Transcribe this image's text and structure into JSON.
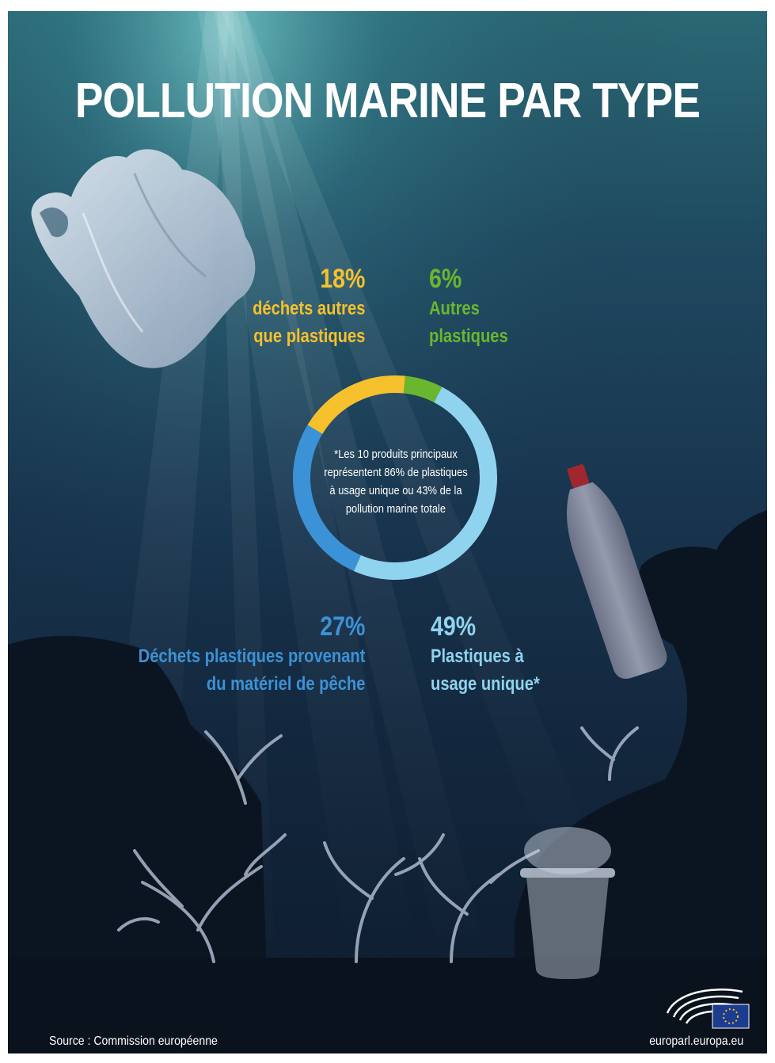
{
  "title": "POLLUTION MARINE PAR TYPE",
  "chart_data": {
    "type": "pie",
    "title": "POLLUTION MARINE PAR TYPE",
    "slices": [
      {
        "pct_label": "18%",
        "value": 18,
        "label_line1": "déchets autres",
        "label_line2": "que plastiques",
        "color": "#f6c12c"
      },
      {
        "pct_label": "6%",
        "value": 6,
        "label_line1": "Autres",
        "label_line2": "plastiques",
        "color": "#6ab72f"
      },
      {
        "pct_label": "49%",
        "value": 49,
        "label_line1": "Plastiques à",
        "label_line2": "usage unique*",
        "color": "#8fd3ef"
      },
      {
        "pct_label": "27%",
        "value": 27,
        "label_line1": "Déchets plastiques provenant",
        "label_line2": "du matériel de pêche",
        "color": "#3b92d6"
      }
    ],
    "center_note_lines": [
      "*Les 10 produits principaux",
      "représentent 86% de plastiques",
      "à usage unique ou 43% de la",
      "pollution marine totale"
    ]
  },
  "footer": {
    "source": "Source : Commission européenne",
    "site": "europarl.europa.eu"
  },
  "icons": [
    "plastic-bag-icon",
    "plastic-bottle-icon",
    "plastic-cup-icon",
    "coral-icon",
    "european-parliament-logo-icon"
  ]
}
